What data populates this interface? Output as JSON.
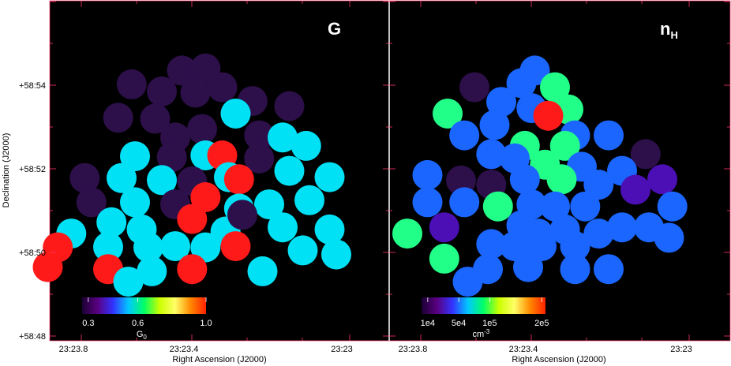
{
  "chart_data": {
    "type": "scatter",
    "xlabel": "Right Ascension (J2000)",
    "ylabel": "Declination (J2000)",
    "x_ticks": [
      "23:23.8",
      "23:23.4",
      "23:23"
    ],
    "y_ticks": [
      "+58:54",
      "+58:52",
      "+58:50",
      "+58:48"
    ],
    "xlim": [
      "23:23.93",
      "23:22.8"
    ],
    "ylim": [
      "+58:48",
      "+58:56"
    ],
    "panels": [
      {
        "tag": "G",
        "tag_sub": "",
        "colorbar": {
          "label": "G",
          "label_sub": "0",
          "label_sup": "",
          "colors": [
            "#1a0033",
            "#5a0080",
            "#3333ff",
            "#00c8ff",
            "#00ff66",
            "#ccff00",
            "#ffff66",
            "#ff8800",
            "#ff2200"
          ],
          "ticks": [
            "0.3",
            "0.6",
            "1.0"
          ]
        },
        "points": [
          {
            "ra": 23.5,
            "dec": 54.35,
            "color": "#2d0f4a"
          },
          {
            "ra": 23.43,
            "dec": 54.4,
            "color": "#2d0f4a"
          },
          {
            "ra": 23.65,
            "dec": 54.02,
            "color": "#2d0f4a"
          },
          {
            "ra": 23.56,
            "dec": 53.85,
            "color": "#2d0f4a"
          },
          {
            "ra": 23.46,
            "dec": 53.82,
            "color": "#2d0f4a"
          },
          {
            "ra": 23.38,
            "dec": 53.95,
            "color": "#2d0f4a"
          },
          {
            "ra": 23.29,
            "dec": 53.62,
            "color": "#2d0f4a"
          },
          {
            "ra": 23.18,
            "dec": 53.5,
            "color": "#2d0f4a"
          },
          {
            "ra": 23.69,
            "dec": 53.22,
            "color": "#2d0f4a"
          },
          {
            "ra": 23.58,
            "dec": 53.2,
            "color": "#2d0f4a"
          },
          {
            "ra": 23.34,
            "dec": 53.32,
            "color": "#00e1f5"
          },
          {
            "ra": 23.44,
            "dec": 52.95,
            "color": "#2d0f4a"
          },
          {
            "ra": 23.52,
            "dec": 52.75,
            "color": "#2d0f4a"
          },
          {
            "ra": 23.27,
            "dec": 52.8,
            "color": "#2d0f4a"
          },
          {
            "ra": 23.2,
            "dec": 52.75,
            "color": "#00e1f5"
          },
          {
            "ra": 23.13,
            "dec": 52.55,
            "color": "#00e1f5"
          },
          {
            "ra": 23.64,
            "dec": 52.3,
            "color": "#00e1f5"
          },
          {
            "ra": 23.53,
            "dec": 52.28,
            "color": "#2d0f4a"
          },
          {
            "ra": 23.43,
            "dec": 52.32,
            "color": "#00e1f5"
          },
          {
            "ra": 23.38,
            "dec": 52.32,
            "color": "#ff1a1a"
          },
          {
            "ra": 23.27,
            "dec": 52.25,
            "color": "#2d0f4a"
          },
          {
            "ra": 23.79,
            "dec": 51.78,
            "color": "#2d0f4a"
          },
          {
            "ra": 23.68,
            "dec": 51.78,
            "color": "#00e1f5"
          },
          {
            "ra": 23.56,
            "dec": 51.73,
            "color": "#00e1f5"
          },
          {
            "ra": 23.47,
            "dec": 51.7,
            "color": "#2d0f4a"
          },
          {
            "ra": 23.36,
            "dec": 51.8,
            "color": "#00e1f5"
          },
          {
            "ra": 23.33,
            "dec": 51.75,
            "color": "#ff1a1a"
          },
          {
            "ra": 23.18,
            "dec": 51.95,
            "color": "#00e1f5"
          },
          {
            "ra": 23.06,
            "dec": 51.8,
            "color": "#00e1f5"
          },
          {
            "ra": 23.77,
            "dec": 51.2,
            "color": "#2d0f4a"
          },
          {
            "ra": 23.64,
            "dec": 51.2,
            "color": "#00e1f5"
          },
          {
            "ra": 23.52,
            "dec": 51.15,
            "color": "#2d0f4a"
          },
          {
            "ra": 23.43,
            "dec": 51.32,
            "color": "#ff1a1a"
          },
          {
            "ra": 23.33,
            "dec": 51.05,
            "color": "#00e1f5"
          },
          {
            "ra": 23.24,
            "dec": 51.15,
            "color": "#00e1f5"
          },
          {
            "ra": 23.12,
            "dec": 51.25,
            "color": "#00e1f5"
          },
          {
            "ra": 23.83,
            "dec": 50.45,
            "color": "#00e1f5"
          },
          {
            "ra": 23.71,
            "dec": 50.72,
            "color": "#00e1f5"
          },
          {
            "ra": 23.62,
            "dec": 50.55,
            "color": "#00e1f5"
          },
          {
            "ra": 23.47,
            "dec": 50.8,
            "color": "#ff1a1a"
          },
          {
            "ra": 23.37,
            "dec": 50.5,
            "color": "#00e1f5"
          },
          {
            "ra": 23.32,
            "dec": 50.9,
            "color": "#2d0f4a"
          },
          {
            "ra": 23.2,
            "dec": 50.6,
            "color": "#00e1f5"
          },
          {
            "ra": 23.06,
            "dec": 50.55,
            "color": "#00e1f5"
          },
          {
            "ra": 23.87,
            "dec": 50.12,
            "color": "#ff1a1a"
          },
          {
            "ra": 23.72,
            "dec": 50.13,
            "color": "#00e1f5"
          },
          {
            "ra": 23.6,
            "dec": 50.12,
            "color": "#00e1f5"
          },
          {
            "ra": 23.52,
            "dec": 50.15,
            "color": "#00e1f5"
          },
          {
            "ra": 23.43,
            "dec": 50.12,
            "color": "#00e1f5"
          },
          {
            "ra": 23.34,
            "dec": 50.15,
            "color": "#ff1a1a"
          },
          {
            "ra": 23.14,
            "dec": 50.05,
            "color": "#00e1f5"
          },
          {
            "ra": 23.04,
            "dec": 49.95,
            "color": "#00e1f5"
          },
          {
            "ra": 23.9,
            "dec": 49.65,
            "color": "#ff1a1a"
          },
          {
            "ra": 23.72,
            "dec": 49.6,
            "color": "#ff1a1a"
          },
          {
            "ra": 23.59,
            "dec": 49.55,
            "color": "#00e1f5"
          },
          {
            "ra": 23.47,
            "dec": 49.6,
            "color": "#ff1a1a"
          },
          {
            "ra": 23.26,
            "dec": 49.55,
            "color": "#00e1f5"
          },
          {
            "ra": 23.66,
            "dec": 49.3,
            "color": "#00e1f5"
          }
        ]
      },
      {
        "tag": "n",
        "tag_sub": "H",
        "colorbar": {
          "label": "cm",
          "label_sub": "",
          "label_sup": "-3",
          "colors": [
            "#1a0033",
            "#5a0080",
            "#3333ff",
            "#00c8ff",
            "#00ff66",
            "#ccff00",
            "#ffff66",
            "#ff8800",
            "#ff2200"
          ],
          "ticks": [
            "1e4",
            "5e4",
            "1e5",
            "2e5"
          ]
        },
        "points": [
          {
            "ra": 23.46,
            "dec": 54.35,
            "color": "#1a66ff"
          },
          {
            "ra": 23.5,
            "dec": 54.05,
            "color": "#1a66ff"
          },
          {
            "ra": 23.64,
            "dec": 53.95,
            "color": "#2d0f4a"
          },
          {
            "ra": 23.4,
            "dec": 53.95,
            "color": "#22ff88"
          },
          {
            "ra": 23.36,
            "dec": 53.42,
            "color": "#22ff88"
          },
          {
            "ra": 23.56,
            "dec": 53.6,
            "color": "#1a66ff"
          },
          {
            "ra": 23.47,
            "dec": 53.45,
            "color": "#1a66ff"
          },
          {
            "ra": 23.72,
            "dec": 53.32,
            "color": "#22ff88"
          },
          {
            "ra": 23.42,
            "dec": 53.27,
            "color": "#ff1a1a"
          },
          {
            "ra": 23.58,
            "dec": 53.05,
            "color": "#1a66ff"
          },
          {
            "ra": 23.34,
            "dec": 52.8,
            "color": "#1a66ff"
          },
          {
            "ra": 23.24,
            "dec": 52.8,
            "color": "#1a66ff"
          },
          {
            "ra": 23.49,
            "dec": 52.55,
            "color": "#22ff88"
          },
          {
            "ra": 23.37,
            "dec": 52.55,
            "color": "#22ff88"
          },
          {
            "ra": 23.67,
            "dec": 52.8,
            "color": "#1a66ff"
          },
          {
            "ra": 23.13,
            "dec": 52.35,
            "color": "#2d0f4a"
          },
          {
            "ra": 23.59,
            "dec": 52.35,
            "color": "#1a66ff"
          },
          {
            "ra": 23.52,
            "dec": 52.25,
            "color": "#1a66ff"
          },
          {
            "ra": 23.43,
            "dec": 52.1,
            "color": "#22ff88"
          },
          {
            "ra": 23.32,
            "dec": 52.05,
            "color": "#1a66ff"
          },
          {
            "ra": 23.2,
            "dec": 51.95,
            "color": "#1a66ff"
          },
          {
            "ra": 23.78,
            "dec": 51.85,
            "color": "#1a66ff"
          },
          {
            "ra": 23.68,
            "dec": 51.72,
            "color": "#2d0f4a"
          },
          {
            "ra": 23.59,
            "dec": 51.62,
            "color": "#2d0f4a"
          },
          {
            "ra": 23.49,
            "dec": 51.75,
            "color": "#1a66ff"
          },
          {
            "ra": 23.38,
            "dec": 51.75,
            "color": "#22ff88"
          },
          {
            "ra": 23.27,
            "dec": 51.62,
            "color": "#1a66ff"
          },
          {
            "ra": 23.08,
            "dec": 51.75,
            "color": "#4b0fb5"
          },
          {
            "ra": 23.16,
            "dec": 51.5,
            "color": "#4b0fb5"
          },
          {
            "ra": 23.78,
            "dec": 51.2,
            "color": "#1a66ff"
          },
          {
            "ra": 23.67,
            "dec": 51.2,
            "color": "#1a66ff"
          },
          {
            "ra": 23.57,
            "dec": 51.1,
            "color": "#22ff88"
          },
          {
            "ra": 23.47,
            "dec": 51.15,
            "color": "#1a66ff"
          },
          {
            "ra": 23.4,
            "dec": 51.1,
            "color": "#1a66ff"
          },
          {
            "ra": 23.31,
            "dec": 51.1,
            "color": "#1a66ff"
          },
          {
            "ra": 23.05,
            "dec": 51.1,
            "color": "#1a66ff"
          },
          {
            "ra": 23.84,
            "dec": 50.45,
            "color": "#22ff88"
          },
          {
            "ra": 23.73,
            "dec": 50.6,
            "color": "#4b0fb5"
          },
          {
            "ra": 23.5,
            "dec": 50.65,
            "color": "#1a66ff"
          },
          {
            "ra": 23.45,
            "dec": 50.45,
            "color": "#1a66ff"
          },
          {
            "ra": 23.37,
            "dec": 50.55,
            "color": "#1a66ff"
          },
          {
            "ra": 23.27,
            "dec": 50.45,
            "color": "#1a66ff"
          },
          {
            "ra": 23.2,
            "dec": 50.6,
            "color": "#1a66ff"
          },
          {
            "ra": 23.12,
            "dec": 50.6,
            "color": "#1a66ff"
          },
          {
            "ra": 23.06,
            "dec": 50.35,
            "color": "#1a66ff"
          },
          {
            "ra": 23.59,
            "dec": 50.2,
            "color": "#1a66ff"
          },
          {
            "ra": 23.52,
            "dec": 50.15,
            "color": "#1a66ff"
          },
          {
            "ra": 23.44,
            "dec": 50.15,
            "color": "#1a66ff"
          },
          {
            "ra": 23.34,
            "dec": 50.15,
            "color": "#1a66ff"
          },
          {
            "ra": 23.73,
            "dec": 49.85,
            "color": "#22ff88"
          },
          {
            "ra": 23.6,
            "dec": 49.6,
            "color": "#1a66ff"
          },
          {
            "ra": 23.48,
            "dec": 49.65,
            "color": "#1a66ff"
          },
          {
            "ra": 23.34,
            "dec": 49.6,
            "color": "#1a66ff"
          },
          {
            "ra": 23.24,
            "dec": 49.6,
            "color": "#1a66ff"
          },
          {
            "ra": 23.66,
            "dec": 49.3,
            "color": "#1a66ff"
          }
        ]
      }
    ]
  }
}
